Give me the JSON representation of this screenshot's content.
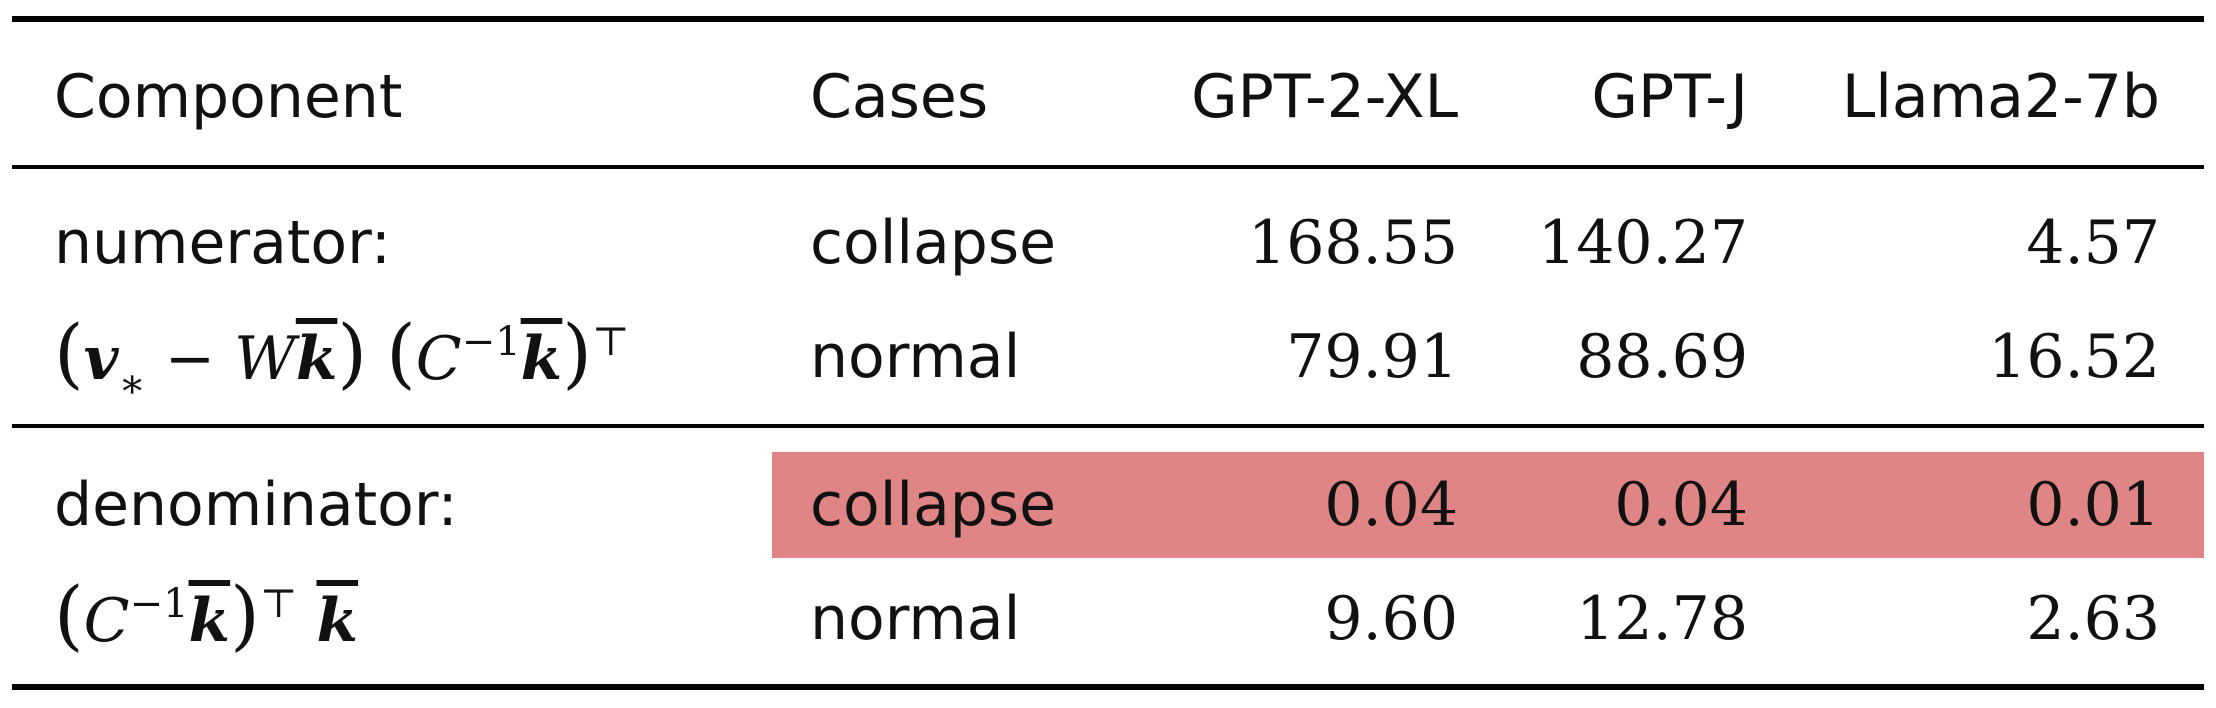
{
  "table": {
    "highlight_color": "#e08585",
    "headers": {
      "component": "Component",
      "cases": "Cases",
      "gpt2xl": "GPT-2-XL",
      "gptj": "GPT-J",
      "llama": "Llama2-7b"
    },
    "groups": [
      {
        "label": "numerator:",
        "formula": {
          "v": "v",
          "star": "∗",
          "minus": " − ",
          "w": "W",
          "k": "k",
          "c": "C",
          "inv": "−1",
          "t": "⊤"
        },
        "rows": [
          {
            "case": "collapse",
            "gpt2xl": "168.55",
            "gptj": "140.27",
            "llama": "4.57",
            "highlighted": false
          },
          {
            "case": "normal",
            "gpt2xl": "79.91",
            "gptj": "88.69",
            "llama": "16.52",
            "highlighted": false
          }
        ]
      },
      {
        "label": "denominator:",
        "formula": {
          "c": "C",
          "inv": "−1",
          "k": "k",
          "t": "⊤",
          "k2": "k"
        },
        "rows": [
          {
            "case": "collapse",
            "gpt2xl": "0.04",
            "gptj": "0.04",
            "llama": "0.01",
            "highlighted": true
          },
          {
            "case": "normal",
            "gpt2xl": "9.60",
            "gptj": "12.78",
            "llama": "2.63",
            "highlighted": false
          }
        ]
      }
    ]
  }
}
